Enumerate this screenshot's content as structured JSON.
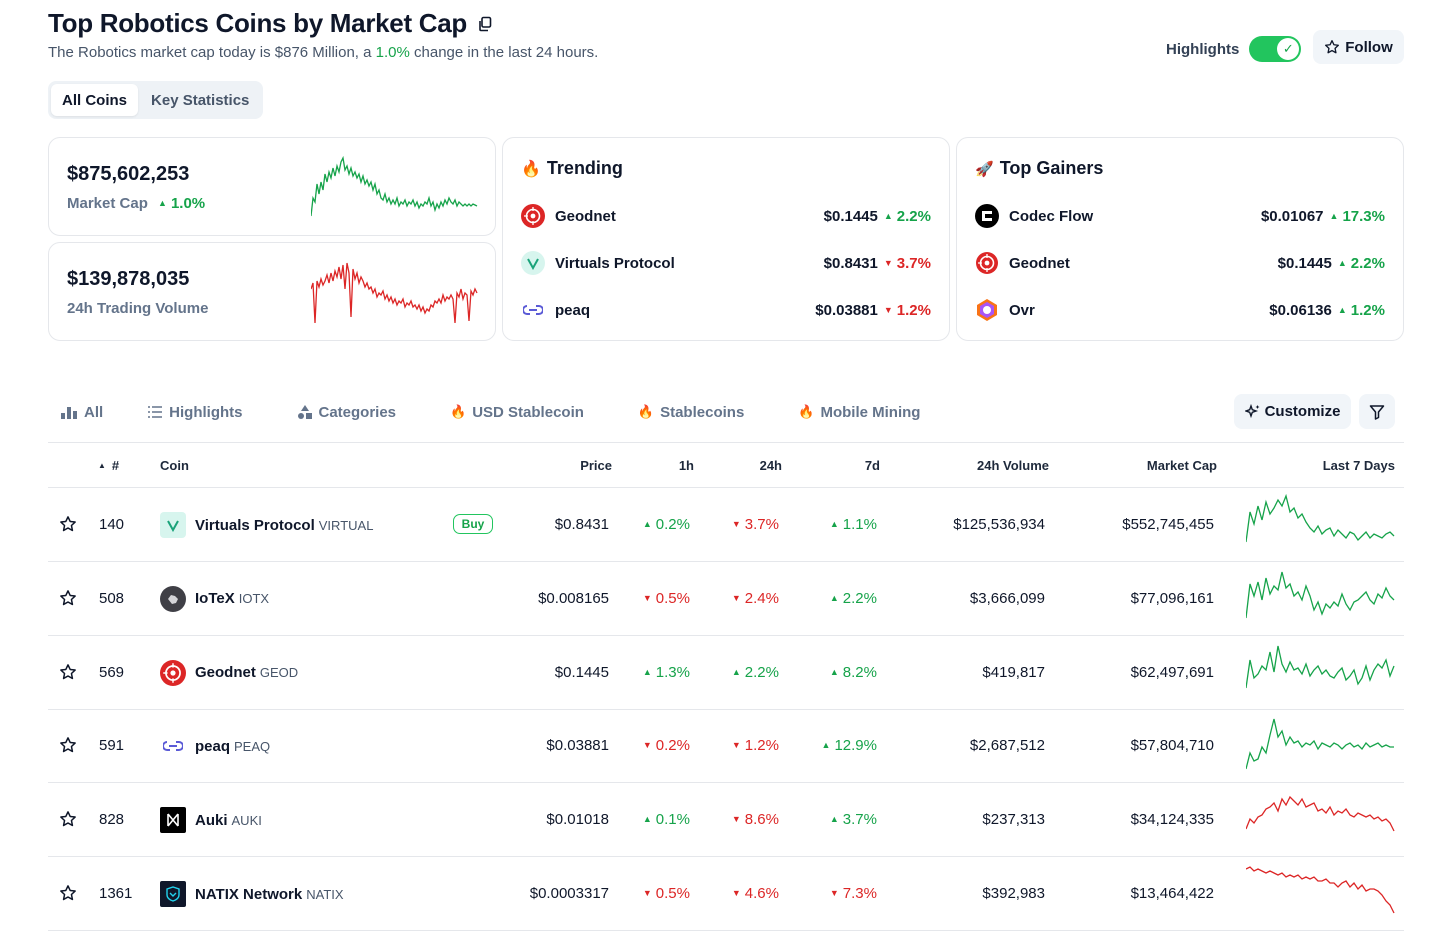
{
  "header": {
    "title": "Top Robotics Coins by Market Cap",
    "subtitle_pre": "The Robotics market cap today is $876 Million, a ",
    "subtitle_change": "1.0%",
    "subtitle_post": " change in the last 24 hours.",
    "highlights_label": "Highlights",
    "highlights_on": true,
    "follow_label": "Follow"
  },
  "view_tabs": [
    "All Coins",
    "Key Statistics"
  ],
  "active_view_tab": "All Coins",
  "stats": {
    "market_cap_value": "$875,602,253",
    "market_cap_label": "Market Cap",
    "market_cap_change": "1.0%",
    "volume_value": "$139,878,035",
    "volume_label": "24h Trading Volume"
  },
  "trending": {
    "title": "Trending",
    "items": [
      {
        "name": "Geodnet",
        "price": "$0.1445",
        "change": "2.2%",
        "dir": "up"
      },
      {
        "name": "Virtuals Protocol",
        "price": "$0.8431",
        "change": "3.7%",
        "dir": "down"
      },
      {
        "name": "peaq",
        "price": "$0.03881",
        "change": "1.2%",
        "dir": "down"
      }
    ]
  },
  "top_gainers": {
    "title": "Top Gainers",
    "items": [
      {
        "name": "Codec Flow",
        "price": "$0.01067",
        "change": "17.3%",
        "dir": "up"
      },
      {
        "name": "Geodnet",
        "price": "$0.1445",
        "change": "2.2%",
        "dir": "up"
      },
      {
        "name": "Ovr",
        "price": "$0.06136",
        "change": "1.2%",
        "dir": "up"
      }
    ]
  },
  "filter_tabs": [
    "All",
    "Highlights",
    "Categories",
    "USD Stablecoin",
    "Stablecoins",
    "Mobile Mining"
  ],
  "customize_label": "Customize",
  "table": {
    "columns": [
      "#",
      "Coin",
      "Price",
      "1h",
      "24h",
      "7d",
      "24h Volume",
      "Market Cap",
      "Last 7 Days"
    ],
    "buy_label": "Buy",
    "rows": [
      {
        "rank": "140",
        "name": "Virtuals Protocol",
        "symbol": "VIRTUAL",
        "price": "$0.8431",
        "h1": "0.2%",
        "h1_dir": "up",
        "h24": "3.7%",
        "h24_dir": "down",
        "d7": "1.1%",
        "d7_dir": "up",
        "volume": "$125,536,934",
        "market_cap": "$552,745,455",
        "spark_color": "#16a34a",
        "buy": true
      },
      {
        "rank": "508",
        "name": "IoTeX",
        "symbol": "IOTX",
        "price": "$0.008165",
        "h1": "0.5%",
        "h1_dir": "down",
        "h24": "2.4%",
        "h24_dir": "down",
        "d7": "2.2%",
        "d7_dir": "up",
        "volume": "$3,666,099",
        "market_cap": "$77,096,161",
        "spark_color": "#16a34a",
        "buy": false
      },
      {
        "rank": "569",
        "name": "Geodnet",
        "symbol": "GEOD",
        "price": "$0.1445",
        "h1": "1.3%",
        "h1_dir": "up",
        "h24": "2.2%",
        "h24_dir": "up",
        "d7": "8.2%",
        "d7_dir": "up",
        "volume": "$419,817",
        "market_cap": "$62,497,691",
        "spark_color": "#16a34a",
        "buy": false
      },
      {
        "rank": "591",
        "name": "peaq",
        "symbol": "PEAQ",
        "price": "$0.03881",
        "h1": "0.2%",
        "h1_dir": "down",
        "h24": "1.2%",
        "h24_dir": "down",
        "d7": "12.9%",
        "d7_dir": "up",
        "volume": "$2,687,512",
        "market_cap": "$57,804,710",
        "spark_color": "#16a34a",
        "buy": false
      },
      {
        "rank": "828",
        "name": "Auki",
        "symbol": "AUKI",
        "price": "$0.01018",
        "h1": "0.1%",
        "h1_dir": "up",
        "h24": "8.6%",
        "h24_dir": "down",
        "d7": "3.7%",
        "d7_dir": "up",
        "volume": "$237,313",
        "market_cap": "$34,124,335",
        "spark_color": "#dc2626",
        "buy": false
      },
      {
        "rank": "1361",
        "name": "NATIX Network",
        "symbol": "NATIX",
        "price": "$0.0003317",
        "h1": "0.5%",
        "h1_dir": "down",
        "h24": "4.6%",
        "h24_dir": "down",
        "d7": "7.3%",
        "d7_dir": "down",
        "volume": "$392,983",
        "market_cap": "$13,464,422",
        "spark_color": "#dc2626",
        "buy": false
      }
    ]
  },
  "colors": {
    "up": "#16a34a",
    "down": "#dc2626",
    "toggle": "#22c55e"
  }
}
